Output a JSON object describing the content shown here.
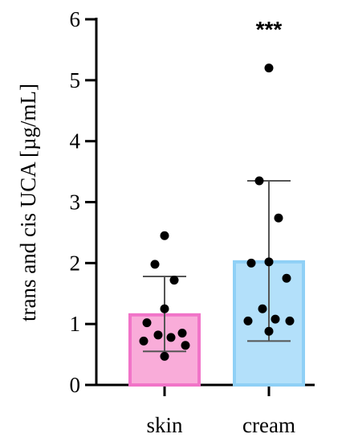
{
  "chart_data": {
    "type": "bar",
    "categories": [
      "skin",
      "cream"
    ],
    "ylabel": "trans and cis UCA  [µg/mL]",
    "ylim": [
      0,
      6
    ],
    "yticks": [
      "0",
      "1",
      "2",
      "3",
      "4",
      "5",
      "6"
    ],
    "grid": false,
    "legend": "none",
    "series": [
      {
        "values": [
          1.15,
          2.02
        ],
        "error_low": [
          0.55,
          0.72
        ],
        "error_high": [
          1.78,
          3.35
        ],
        "colors": {
          "fill": "#f9acd9",
          "edge": "#f174c8"
        }
      }
    ],
    "bar_colors": [
      {
        "fill": "#f9acd9",
        "edge": "#f174c8"
      },
      {
        "fill": "#b3e0fa",
        "edge": "#8fd0f6"
      }
    ],
    "points": [
      {
        "category": "skin",
        "values": [
          2.45,
          1.98,
          1.72,
          1.25,
          1.02,
          0.85,
          0.82,
          0.78,
          0.72,
          0.65,
          0.47
        ]
      },
      {
        "category": "cream",
        "values": [
          5.2,
          3.35,
          2.74,
          2.02,
          2.0,
          1.75,
          1.25,
          1.08,
          1.05,
          1.05,
          0.88
        ]
      }
    ],
    "annotations": [
      {
        "category": "cream",
        "text": "***"
      }
    ]
  }
}
